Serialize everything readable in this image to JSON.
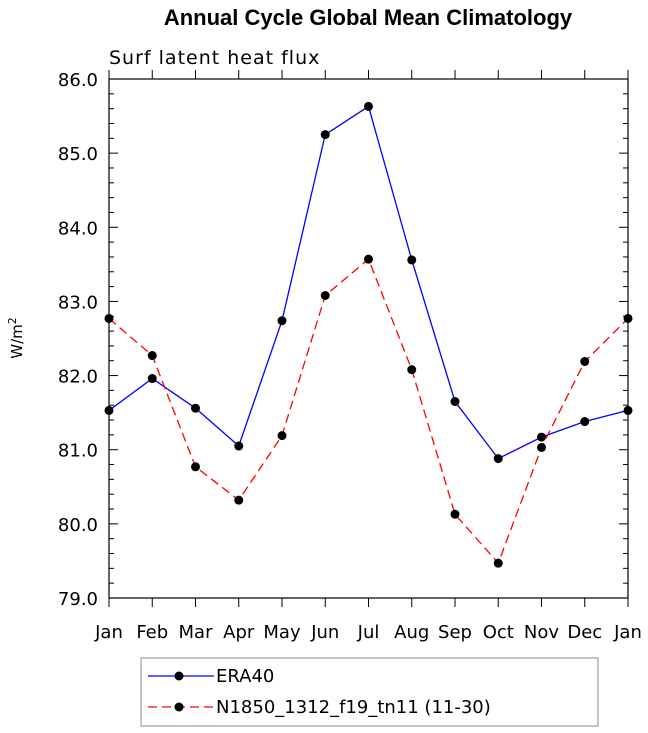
{
  "chart_data": {
    "type": "line",
    "title": "Annual Cycle Global Mean Climatology",
    "subtitle": "Surf latent heat flux",
    "xlabel": "",
    "ylabel": "W/m",
    "ylabel_superscript": "2",
    "categories": [
      "Jan",
      "Feb",
      "Mar",
      "Apr",
      "May",
      "Jun",
      "Jul",
      "Aug",
      "Sep",
      "Oct",
      "Nov",
      "Dec",
      "Jan"
    ],
    "ylim": [
      79.0,
      86.0
    ],
    "yticks": [
      "79.0",
      "80.0",
      "81.0",
      "82.0",
      "83.0",
      "84.0",
      "85.0",
      "86.0"
    ],
    "series": [
      {
        "name": "ERA40",
        "color": "#0000ff",
        "dash": "solid",
        "values": [
          81.53,
          81.96,
          81.56,
          81.05,
          82.74,
          85.25,
          85.63,
          83.56,
          81.65,
          80.88,
          81.17,
          81.38,
          81.53
        ]
      },
      {
        "name": "N1850_1312_f19_tn11 (11-30)",
        "color": "#ff0000",
        "dash": "dashed",
        "values": [
          82.77,
          82.27,
          80.77,
          80.32,
          81.19,
          83.08,
          83.57,
          82.08,
          80.13,
          79.47,
          81.03,
          82.19,
          82.77
        ]
      }
    ],
    "legend_position": "bottom"
  }
}
